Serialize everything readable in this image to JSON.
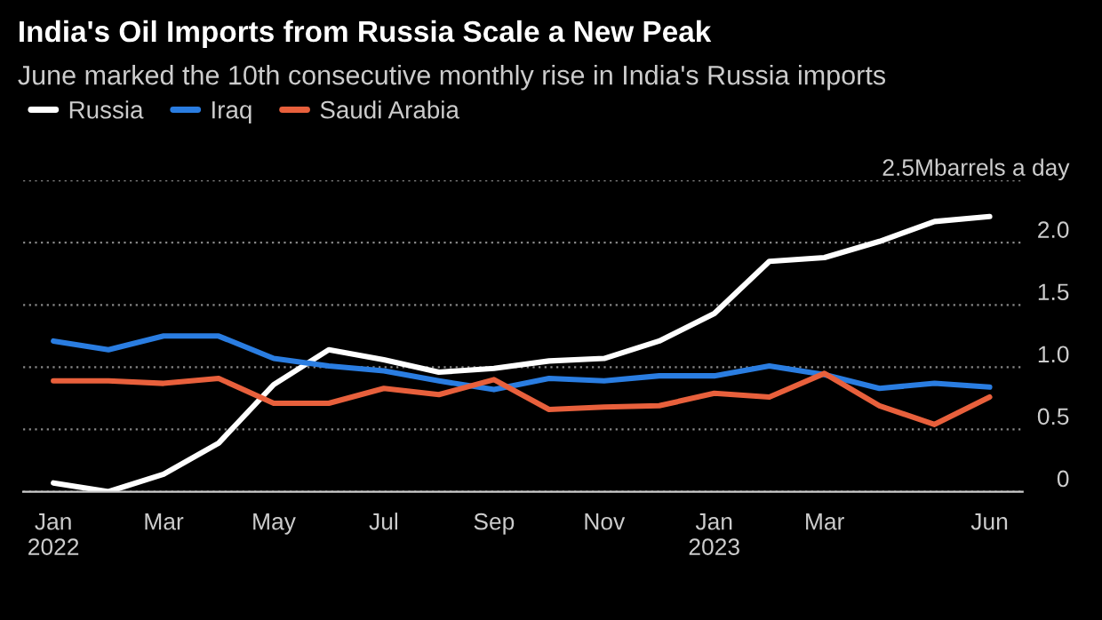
{
  "chart_data": {
    "type": "line",
    "title": "India's Oil Imports from Russia Scale a New Peak",
    "subtitle": "June marked the 10th consecutive monthly rise in India's Russia imports",
    "categories": [
      "Jan\n2022",
      null,
      "Mar",
      null,
      "May",
      null,
      "Jul",
      null,
      "Sep",
      null,
      "Nov",
      null,
      "Jan\n2023",
      null,
      "Mar",
      null,
      null,
      "Jun"
    ],
    "series": [
      {
        "name": "Russia",
        "color": "#ffffff",
        "values": [
          0.07,
          0.0,
          0.14,
          0.39,
          0.86,
          1.14,
          1.06,
          0.96,
          0.99,
          1.05,
          1.07,
          1.21,
          1.43,
          1.85,
          1.88,
          2.01,
          2.17,
          2.21
        ]
      },
      {
        "name": "Iraq",
        "color": "#2a7de1",
        "values": [
          1.21,
          1.14,
          1.25,
          1.25,
          1.07,
          1.01,
          0.97,
          0.89,
          0.82,
          0.91,
          0.89,
          0.93,
          0.93,
          1.01,
          0.94,
          0.83,
          0.87,
          0.84
        ]
      },
      {
        "name": "Saudi Arabia",
        "color": "#e8603c",
        "values": [
          0.89,
          0.89,
          0.87,
          0.91,
          0.71,
          0.71,
          0.83,
          0.78,
          0.9,
          0.66,
          0.68,
          0.69,
          0.79,
          0.76,
          0.95,
          0.69,
          0.54,
          0.76
        ]
      }
    ],
    "ylim": [
      0,
      2.5
    ],
    "yticks": [
      0,
      0.5,
      {
        "value": 1,
        "label": "1.0"
      },
      1.5,
      {
        "value": 2,
        "label": "2.0"
      },
      {
        "value": 2.5,
        "label": "2.5Mbarrels a day"
      }
    ],
    "grid": "y",
    "legend": "top left",
    "marker": "none",
    "line_style": "solid"
  }
}
